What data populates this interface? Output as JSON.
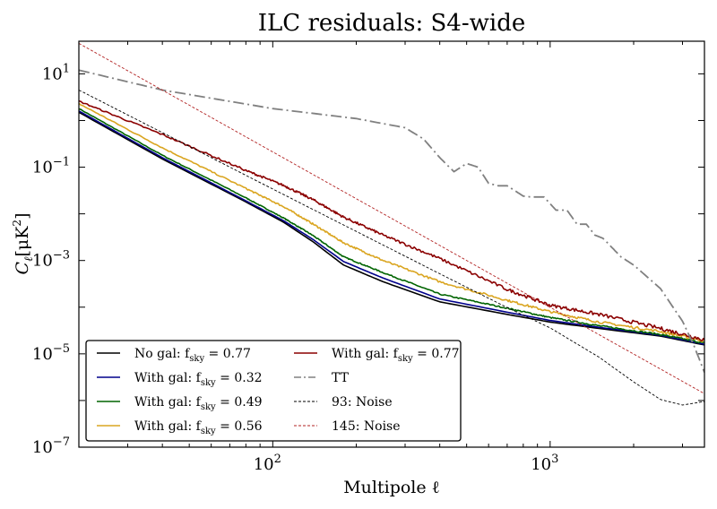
{
  "chart_data": {
    "type": "line",
    "title": "ILC residuals: S4-wide",
    "xlabel": "Multipole ℓ",
    "ylabel_main": "C",
    "ylabel_sub": "ℓ",
    "ylabel_unit": "[μK",
    "ylabel_unit_sup": "2",
    "ylabel_unit_close": "]",
    "x_scale": "log",
    "y_scale": "log",
    "xlim": [
      20,
      3600
    ],
    "ylim": [
      1e-07,
      50
    ],
    "grid": false,
    "legend_position": "lower-left",
    "x_ticks": [
      {
        "value": 100,
        "base": "10",
        "exp": "2"
      },
      {
        "value": 1000,
        "base": "10",
        "exp": "3"
      }
    ],
    "y_ticks": [
      {
        "value": 10,
        "base": "10",
        "exp": "1"
      },
      {
        "value": 0.1,
        "base": "10",
        "exp": "−1"
      },
      {
        "value": 0.001,
        "base": "10",
        "exp": "−3"
      },
      {
        "value": 1e-05,
        "base": "10",
        "exp": "−5"
      },
      {
        "value": 1e-07,
        "base": "10",
        "exp": "−7"
      }
    ],
    "series": [
      {
        "name_prefix": "No gal: f",
        "name_sub": "sky",
        "name_suffix": " = 0.77",
        "color": "#000000",
        "dash": "solid",
        "noise": 0,
        "x": [
          20,
          40,
          80,
          110,
          140,
          180,
          250,
          400,
          700,
          1000,
          1500,
          2500,
          3600
        ],
        "y": [
          1.5,
          0.15,
          0.018,
          0.0065,
          0.0025,
          0.0008,
          0.00035,
          0.00013,
          7e-05,
          4.8e-05,
          3.5e-05,
          2.4e-05,
          1.55e-05
        ]
      },
      {
        "name_prefix": "With gal: f",
        "name_sub": "sky",
        "name_suffix": " = 0.32",
        "color": "#00008b",
        "dash": "solid",
        "noise": 0,
        "x": [
          20,
          40,
          80,
          110,
          140,
          180,
          250,
          400,
          700,
          1000,
          1500,
          2500,
          3600
        ],
        "y": [
          1.6,
          0.16,
          0.019,
          0.007,
          0.0028,
          0.00095,
          0.00042,
          0.00015,
          7.8e-05,
          5.2e-05,
          3.7e-05,
          2.5e-05,
          1.6e-05
        ]
      },
      {
        "name_prefix": "With gal: f",
        "name_sub": "sky",
        "name_suffix": " = 0.49",
        "color": "#006400",
        "dash": "solid",
        "noise": 0.03,
        "x": [
          20,
          40,
          80,
          110,
          140,
          180,
          250,
          400,
          700,
          1000,
          1500,
          2500,
          3600
        ],
        "y": [
          1.8,
          0.18,
          0.022,
          0.008,
          0.0034,
          0.0012,
          0.00055,
          0.00019,
          9.5e-05,
          6e-05,
          4e-05,
          2.6e-05,
          1.7e-05
        ]
      },
      {
        "name_prefix": "With gal: f",
        "name_sub": "sky",
        "name_suffix": " = 0.56",
        "color": "#daa520",
        "dash": "solid",
        "noise": 0.05,
        "x": [
          20,
          40,
          80,
          110,
          140,
          180,
          250,
          400,
          700,
          1000,
          1500,
          2500,
          3600
        ],
        "y": [
          2.3,
          0.26,
          0.035,
          0.014,
          0.006,
          0.0024,
          0.001,
          0.00035,
          0.00014,
          8e-05,
          4.8e-05,
          3e-05,
          1.9e-05
        ]
      },
      {
        "name_prefix": "With gal: f",
        "name_sub": "sky",
        "name_suffix": " = 0.77",
        "color": "#8b0000",
        "dash": "solid",
        "noise": 0.07,
        "x": [
          20,
          40,
          80,
          110,
          140,
          180,
          250,
          400,
          700,
          1000,
          1500,
          2500,
          3600
        ],
        "y": [
          2.6,
          0.5,
          0.085,
          0.04,
          0.02,
          0.0085,
          0.0035,
          0.0011,
          0.00024,
          0.00011,
          7e-05,
          3.5e-05,
          2e-05
        ]
      },
      {
        "name": "TT",
        "color": "#808080",
        "dash": "12,4,2,4",
        "noise": 0,
        "x": [
          20,
          40,
          100,
          200,
          300,
          350,
          400,
          450,
          500,
          550,
          600,
          650,
          700,
          800,
          850,
          950,
          1050,
          1150,
          1250,
          1350,
          1450,
          1550,
          1800,
          2000,
          2500,
          3000,
          3300,
          3600
        ],
        "y": [
          12,
          4.5,
          1.8,
          1.1,
          0.7,
          0.4,
          0.16,
          0.08,
          0.12,
          0.1,
          0.045,
          0.04,
          0.04,
          0.024,
          0.023,
          0.023,
          0.012,
          0.012,
          0.006,
          0.006,
          0.0035,
          0.003,
          0.0012,
          0.0008,
          0.00025,
          5e-05,
          1.5e-05,
          4e-06
        ]
      },
      {
        "name": "93: Noise",
        "color": "#000000",
        "dash": "3,2",
        "noise": 0,
        "x": [
          20,
          40,
          100,
          200,
          400,
          700,
          1000,
          1500,
          2000,
          2500,
          3000,
          3600
        ],
        "y": [
          4.5,
          0.55,
          0.034,
          0.0042,
          0.00052,
          9.8e-05,
          3.6e-05,
          8.5e-06,
          2.5e-06,
          1.05e-06,
          8e-07,
          9.5e-07
        ]
      },
      {
        "name": "145: Noise",
        "color": "#b22222",
        "dash": "3,2",
        "noise": 0,
        "x": [
          20,
          3600
        ],
        "y": [
          45,
          1.4e-06
        ]
      }
    ]
  }
}
